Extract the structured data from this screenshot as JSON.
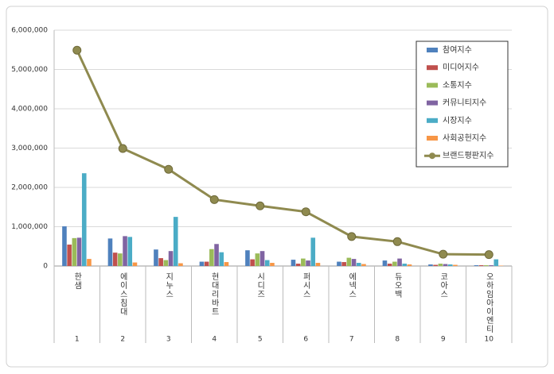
{
  "chart_data": {
    "type": "bar_line",
    "categories": [
      "한샘",
      "에이스침대",
      "지누스",
      "현대리바트",
      "시디즈",
      "퍼시스",
      "에넥스",
      "듀오백",
      "코아스",
      "오하임아이엔티"
    ],
    "ranks": [
      1,
      2,
      3,
      4,
      5,
      6,
      7,
      8,
      9,
      10
    ],
    "series": [
      {
        "name": "참여지수",
        "color": "#4f81bd",
        "values": [
          1010000,
          700000,
          420000,
          110000,
          400000,
          160000,
          110000,
          140000,
          40000,
          20000
        ]
      },
      {
        "name": "미디어지수",
        "color": "#c0504d",
        "values": [
          545000,
          340000,
          200000,
          110000,
          170000,
          60000,
          100000,
          60000,
          30000,
          20000
        ]
      },
      {
        "name": "소통지수",
        "color": "#9bbb59",
        "values": [
          710000,
          320000,
          150000,
          430000,
          320000,
          190000,
          210000,
          110000,
          60000,
          20000
        ]
      },
      {
        "name": "커뮤니티지수",
        "color": "#8064a2",
        "values": [
          720000,
          760000,
          380000,
          560000,
          380000,
          140000,
          180000,
          190000,
          50000,
          20000
        ]
      },
      {
        "name": "시장지수",
        "color": "#4bacc6",
        "values": [
          2360000,
          740000,
          1250000,
          350000,
          150000,
          720000,
          80000,
          60000,
          40000,
          170000
        ]
      },
      {
        "name": "사회공헌지수",
        "color": "#f79646",
        "values": [
          180000,
          90000,
          70000,
          100000,
          80000,
          80000,
          50000,
          40000,
          30000,
          10000
        ]
      },
      {
        "name": "브랜드평판지수",
        "color": "#8f8a4f",
        "type": "line",
        "values": [
          5490000,
          2990000,
          2460000,
          1690000,
          1530000,
          1380000,
          750000,
          620000,
          300000,
          290000
        ]
      }
    ],
    "ylim": [
      0,
      6000000
    ],
    "yticks": [
      0,
      {
        "value": 1000000,
        "label": "1,000,000"
      },
      {
        "value": 2000000,
        "label": "2,000,000"
      },
      {
        "value": 3000000,
        "label": "3,000,000"
      },
      {
        "value": 4000000,
        "label": "4,000,000"
      },
      {
        "value": 5000000,
        "label": "5,000,000"
      },
      {
        "value": 6000000,
        "label": "6,000,000"
      }
    ],
    "grid": true,
    "legend": "upper right"
  }
}
